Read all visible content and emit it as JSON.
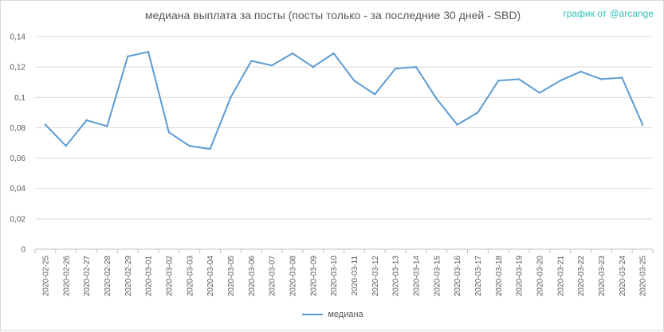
{
  "chart_data": {
    "type": "line",
    "title": "медиана выплата за посты  (посты только - за последние 30 дней - SBD)",
    "credit": "график от @arcange",
    "categories": [
      "2020-02-25",
      "2020-02-26",
      "2020-02-27",
      "2020-02-28",
      "2020-02-29",
      "2020-03-01",
      "2020-03-02",
      "2020-03-03",
      "2020-03-04",
      "2020-03-05",
      "2020-03-06",
      "2020-03-07",
      "2020-03-08",
      "2020-03-09",
      "2020-03-10",
      "2020-03-11",
      "2020-03-12",
      "2020-03-13",
      "2020-03-14",
      "2020-03-15",
      "2020-03-16",
      "2020-03-17",
      "2020-03-18",
      "2020-03-19",
      "2020-03-20",
      "2020-03-21",
      "2020-03-22",
      "2020-03-23",
      "2020-03-24",
      "2020-03-25"
    ],
    "series": [
      {
        "name": "медиана",
        "color": "#5b9bd5",
        "values": [
          0.082,
          0.068,
          0.085,
          0.081,
          0.127,
          0.13,
          0.077,
          0.068,
          0.066,
          0.1,
          0.124,
          0.121,
          0.129,
          0.12,
          0.129,
          0.111,
          0.102,
          0.119,
          0.12,
          0.099,
          0.082,
          0.09,
          0.111,
          0.112,
          0.103,
          0.111,
          0.117,
          0.112,
          0.113,
          0.082
        ]
      }
    ],
    "yticks": [
      "0",
      "0,02",
      "0,04",
      "0,06",
      "0,08",
      "0,1",
      "0,12",
      "0,14"
    ],
    "ylim": [
      0,
      0.14
    ],
    "grid": true,
    "legend_position": "bottom"
  }
}
